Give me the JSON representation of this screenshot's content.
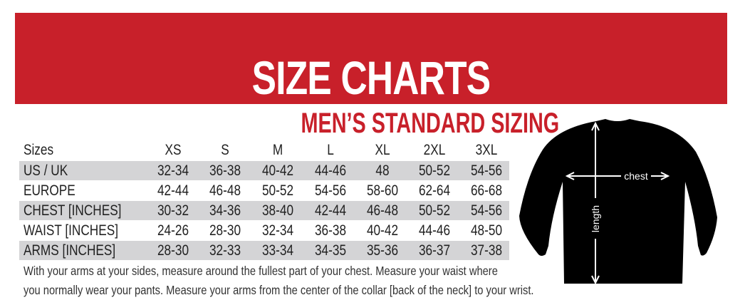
{
  "header": {
    "title": "SIZE CHARTS",
    "banner_color": "#c8202a"
  },
  "subtitle": "MEN’S STANDARD SIZING",
  "table": {
    "columns": [
      "Sizes",
      "XS",
      "S",
      "M",
      "L",
      "XL",
      "2XL",
      "3XL"
    ],
    "rows": [
      {
        "label": "US / UK",
        "values": [
          "32-34",
          "36-38",
          "40-42",
          "44-46",
          "48",
          "50-52",
          "54-56"
        ]
      },
      {
        "label": "EUROPE",
        "values": [
          "42-44",
          "46-48",
          "50-52",
          "54-56",
          "58-60",
          "62-64",
          "66-68"
        ]
      },
      {
        "label": "CHEST [INCHES]",
        "values": [
          "30-32",
          "34-36",
          "38-40",
          "42-44",
          "46-48",
          "50-52",
          "54-56"
        ]
      },
      {
        "label": "WAIST [INCHES]",
        "values": [
          "24-26",
          "28-30",
          "32-34",
          "36-38",
          "40-42",
          "44-46",
          "48-50"
        ]
      },
      {
        "label": "ARMS [INCHES]",
        "values": [
          "28-30",
          "32-33",
          "33-34",
          "34-35",
          "35-36",
          "36-37",
          "37-38"
        ]
      }
    ]
  },
  "notes": [
    "With your arms at your sides, measure around the fullest part of your chest. Measure your waist where",
    "you normally wear your pants. Measure your arms from the center of the collar [back of the neck] to your wrist."
  ],
  "diagram": {
    "chest_label": "chest",
    "length_label": "length"
  }
}
